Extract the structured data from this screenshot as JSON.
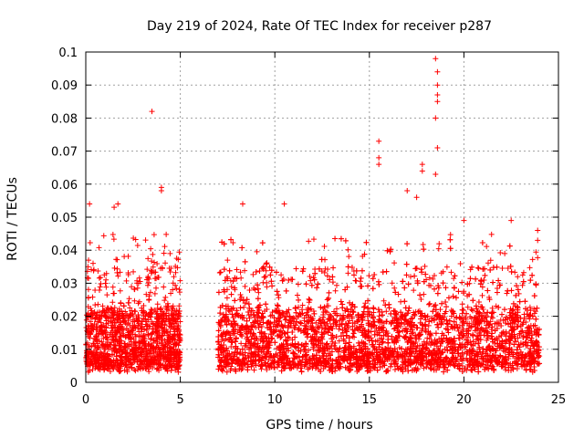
{
  "chart_data": {
    "type": "scatter",
    "title": "Day 219 of 2024, Rate Of TEC Index for receiver p287",
    "xlabel": "GPS time / hours",
    "ylabel": "ROTI / TECUs",
    "xlim": [
      0,
      25
    ],
    "ylim": [
      0,
      0.1
    ],
    "xticks": [
      0,
      5,
      10,
      15,
      20,
      25
    ],
    "xtick_labels": [
      "0",
      "5",
      "10",
      "15",
      "20",
      "25"
    ],
    "yticks": [
      0,
      0.01,
      0.02,
      0.03,
      0.04,
      0.05,
      0.06,
      0.07,
      0.08,
      0.09,
      0.1
    ],
    "ytick_labels": [
      "0",
      "0.01",
      "0.02",
      "0.03",
      "0.04",
      "0.05",
      "0.06",
      "0.07",
      "0.08",
      "0.09",
      "0.1"
    ],
    "grid": true,
    "marker": "+",
    "marker_color": "#ff0000",
    "series": [
      {
        "name": "ROTI",
        "description": "dense scatter, representative sample of points",
        "segments": [
          [
            0,
            5
          ],
          [
            7,
            24
          ]
        ],
        "typical_range": [
          0.003,
          0.03
        ],
        "notable_points": [
          {
            "x": 0.2,
            "y": 0.054
          },
          {
            "x": 1.5,
            "y": 0.053
          },
          {
            "x": 1.7,
            "y": 0.054
          },
          {
            "x": 3.5,
            "y": 0.082
          },
          {
            "x": 4.0,
            "y": 0.059
          },
          {
            "x": 4.0,
            "y": 0.058
          },
          {
            "x": 8.3,
            "y": 0.054
          },
          {
            "x": 10.5,
            "y": 0.054
          },
          {
            "x": 15.5,
            "y": 0.073
          },
          {
            "x": 15.5,
            "y": 0.068
          },
          {
            "x": 15.5,
            "y": 0.066
          },
          {
            "x": 17.0,
            "y": 0.058
          },
          {
            "x": 17.5,
            "y": 0.056
          },
          {
            "x": 17.8,
            "y": 0.066
          },
          {
            "x": 17.8,
            "y": 0.064
          },
          {
            "x": 18.5,
            "y": 0.098
          },
          {
            "x": 18.6,
            "y": 0.094
          },
          {
            "x": 18.6,
            "y": 0.09
          },
          {
            "x": 18.6,
            "y": 0.087
          },
          {
            "x": 18.6,
            "y": 0.085
          },
          {
            "x": 18.5,
            "y": 0.08
          },
          {
            "x": 18.6,
            "y": 0.071
          },
          {
            "x": 18.5,
            "y": 0.063
          },
          {
            "x": 20.0,
            "y": 0.049
          },
          {
            "x": 22.5,
            "y": 0.049
          },
          {
            "x": 23.9,
            "y": 0.046
          },
          {
            "x": 23.9,
            "y": 0.043
          }
        ]
      }
    ]
  }
}
